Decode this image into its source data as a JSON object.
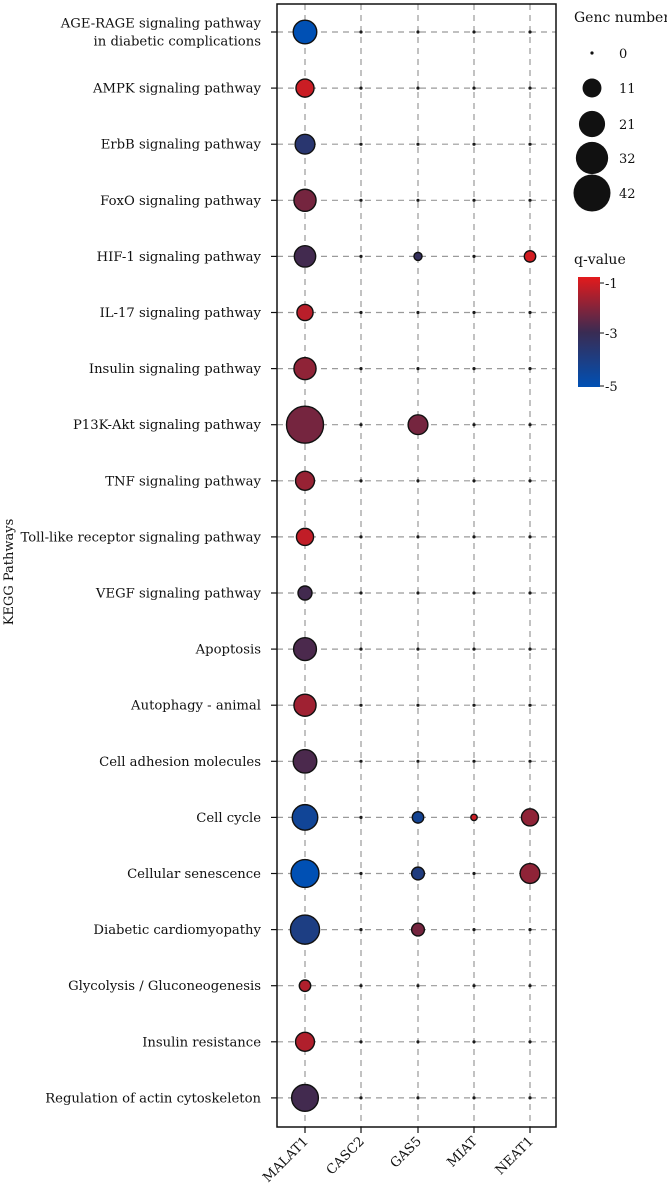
{
  "chart_data": {
    "type": "scatter",
    "ylabel": "KEGG Pathways",
    "xlabel": "",
    "categories_x": [
      "MALAT1",
      "CASC2",
      "GAS5",
      "MIAT",
      "NEAT1"
    ],
    "categories_y": [
      "AGE-RAGE signaling pathway\nin diabetic complications",
      "AMPK signaling pathway",
      "ErbB signaling pathway",
      "FoxO signaling pathway",
      "HIF-1 signaling pathway",
      "IL-17 signaling pathway",
      "Insulin signaling pathway",
      "P13K-Akt signaling pathway",
      "TNF signaling pathway",
      "Toll-like receptor signaling pathway",
      "VEGF signaling pathway",
      "Apoptosis",
      "Autophagy - animal",
      "Cell adhesion molecules",
      "Cell cycle",
      "Cellular senescence",
      "Diabetic cardiomyopathy",
      "Glycolysis / Gluconeogenesis",
      "Insulin resistance",
      "Regulation of actin cytoskeleton"
    ],
    "gene_number": [
      [
        17,
        0,
        0,
        0,
        0
      ],
      [
        10,
        0,
        0,
        0,
        0
      ],
      [
        12,
        0,
        0,
        0,
        0
      ],
      [
        15,
        0,
        0,
        0,
        0
      ],
      [
        14,
        0,
        2,
        0,
        4
      ],
      [
        8,
        0,
        0,
        0,
        0
      ],
      [
        15,
        0,
        0,
        0,
        0
      ],
      [
        42,
        0,
        12,
        0,
        0
      ],
      [
        11,
        0,
        0,
        0,
        0
      ],
      [
        9,
        0,
        0,
        0,
        0
      ],
      [
        6,
        0,
        0,
        0,
        0
      ],
      [
        16,
        0,
        0,
        0,
        0
      ],
      [
        15,
        0,
        0,
        0,
        0
      ],
      [
        17,
        0,
        0,
        0,
        0
      ],
      [
        20,
        0,
        4,
        1,
        9
      ],
      [
        24,
        0,
        5,
        0,
        12
      ],
      [
        26,
        0,
        5,
        0,
        0
      ],
      [
        4,
        0,
        0,
        0,
        0
      ],
      [
        11,
        0,
        0,
        0,
        0
      ],
      [
        22,
        0,
        0,
        0,
        0
      ]
    ],
    "q_value": [
      [
        -5.0,
        -1.2,
        -3,
        -3,
        -3
      ],
      [
        -1.3,
        -3,
        -3,
        -3,
        -3
      ],
      [
        -3.6,
        -3,
        -3,
        -3,
        -3
      ],
      [
        -2.3,
        -3,
        -3,
        -3,
        -3
      ],
      [
        -2.9,
        -3,
        -3.2,
        -3,
        -1.2
      ],
      [
        -1.5,
        -3,
        -3,
        -3,
        -3
      ],
      [
        -2.0,
        -3,
        -3,
        -3,
        -3
      ],
      [
        -2.3,
        -3,
        -2.3,
        -3,
        -3
      ],
      [
        -1.9,
        -3,
        -3,
        -3,
        -3
      ],
      [
        -1.4,
        -3,
        -3,
        -3,
        -3
      ],
      [
        -2.9,
        -3,
        -3,
        -3,
        -3
      ],
      [
        -2.8,
        -3,
        -3,
        -3,
        -3
      ],
      [
        -1.8,
        -3,
        -3,
        -3,
        -3
      ],
      [
        -2.8,
        -3,
        -3,
        -3,
        -3
      ],
      [
        -4.4,
        -3,
        -4.3,
        -1.3,
        -2.0
      ],
      [
        -5.0,
        -3,
        -3.9,
        -3,
        -2.0
      ],
      [
        -4.0,
        -3,
        -2.3,
        -3,
        -3
      ],
      [
        -1.6,
        -3,
        -3,
        -3,
        -3
      ],
      [
        -1.6,
        -3,
        -3,
        -3,
        -3
      ],
      [
        -2.9,
        -3,
        -3,
        -3,
        -3
      ]
    ],
    "size_legend": {
      "title": "Genc number",
      "values": [
        0,
        11,
        21,
        32,
        42
      ],
      "labels": [
        "0",
        "11",
        "21",
        "32",
        "42"
      ]
    },
    "color_legend": {
      "title": "q-value",
      "range": [
        -5,
        -1
      ],
      "labels": [
        "-1",
        "-3",
        "-5"
      ],
      "colors": [
        "#e31a1c",
        "#3a2b52",
        "#0050b4"
      ]
    },
    "grid": true,
    "legend_position": "right"
  }
}
